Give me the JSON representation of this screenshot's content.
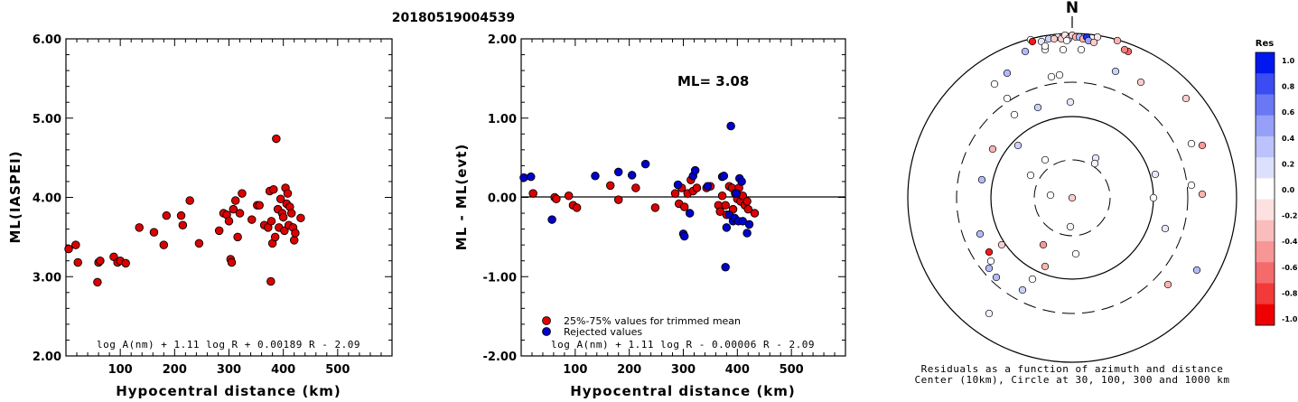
{
  "event_id": "20180519004539",
  "chart_data": [
    {
      "type": "scatter",
      "ylabel": "ML(IASPEI)",
      "xlabel": "Hypocentral distance (km)",
      "xlim": [
        0,
        600
      ],
      "ylim": [
        2.0,
        6.0
      ],
      "xticks": [
        "100",
        "200",
        "300",
        "400",
        "500"
      ],
      "yticks": [
        "2.00",
        "3.00",
        "4.00",
        "5.00",
        "6.00"
      ],
      "formula": "log A(nm) + 1.11 log R + 0.00189 R - 2.09",
      "color": "#dd0000",
      "points": [
        [
          5,
          3.35
        ],
        [
          18,
          3.4
        ],
        [
          22,
          3.18
        ],
        [
          58,
          2.93
        ],
        [
          60,
          3.18
        ],
        [
          63,
          3.2
        ],
        [
          88,
          3.25
        ],
        [
          95,
          3.18
        ],
        [
          100,
          3.2
        ],
        [
          110,
          3.17
        ],
        [
          135,
          3.62
        ],
        [
          162,
          3.56
        ],
        [
          180,
          3.4
        ],
        [
          185,
          3.77
        ],
        [
          212,
          3.77
        ],
        [
          215,
          3.65
        ],
        [
          228,
          3.96
        ],
        [
          245,
          3.42
        ],
        [
          282,
          3.58
        ],
        [
          290,
          3.8
        ],
        [
          296,
          3.78
        ],
        [
          300,
          3.7
        ],
        [
          303,
          3.22
        ],
        [
          305,
          3.18
        ],
        [
          308,
          3.85
        ],
        [
          312,
          3.96
        ],
        [
          316,
          3.5
        ],
        [
          320,
          3.8
        ],
        [
          324,
          4.05
        ],
        [
          342,
          3.72
        ],
        [
          352,
          3.9
        ],
        [
          356,
          3.9
        ],
        [
          365,
          3.65
        ],
        [
          372,
          3.62
        ],
        [
          375,
          4.08
        ],
        [
          377,
          2.94
        ],
        [
          378,
          3.7
        ],
        [
          380,
          3.42
        ],
        [
          382,
          4.1
        ],
        [
          385,
          3.5
        ],
        [
          387,
          4.74
        ],
        [
          390,
          3.85
        ],
        [
          392,
          3.62
        ],
        [
          395,
          3.98
        ],
        [
          398,
          3.8
        ],
        [
          400,
          3.75
        ],
        [
          402,
          3.58
        ],
        [
          404,
          4.12
        ],
        [
          406,
          3.92
        ],
        [
          408,
          4.05
        ],
        [
          410,
          3.65
        ],
        [
          412,
          3.88
        ],
        [
          415,
          3.8
        ],
        [
          418,
          3.62
        ],
        [
          420,
          3.46
        ],
        [
          422,
          3.55
        ],
        [
          432,
          3.74
        ]
      ]
    },
    {
      "type": "scatter",
      "ylabel": "ML - ML(evt)",
      "xlabel": "Hypocentral distance (km)",
      "xlim": [
        0,
        600
      ],
      "ylim": [
        -2.0,
        2.0
      ],
      "xticks": [
        "100",
        "200",
        "300",
        "400",
        "500"
      ],
      "yticks": [
        "-2.00",
        "-1.00",
        "0.00",
        "1.00",
        "2.00"
      ],
      "annotation": "ML= 3.08",
      "formula": "log A(nm) + 1.11 log R - 0.00006 R - 2.09",
      "legend": [
        {
          "label": "25%-75% values for trimmed mean",
          "color": "#dd0000"
        },
        {
          "label": "Rejected values",
          "color": "#0000cc"
        }
      ],
      "series": [
        {
          "name": "25%-75% values for trimmed mean",
          "color": "#dd0000",
          "points": [
            [
              22,
              0.05
            ],
            [
              62,
              0.0
            ],
            [
              65,
              -0.02
            ],
            [
              88,
              0.02
            ],
            [
              96,
              -0.1
            ],
            [
              103,
              -0.13
            ],
            [
              165,
              0.15
            ],
            [
              180,
              -0.03
            ],
            [
              212,
              0.12
            ],
            [
              248,
              -0.13
            ],
            [
              285,
              0.05
            ],
            [
              292,
              -0.08
            ],
            [
              297,
              0.12
            ],
            [
              302,
              -0.12
            ],
            [
              308,
              0.05
            ],
            [
              314,
              0.22
            ],
            [
              318,
              0.08
            ],
            [
              325,
              0.12
            ],
            [
              343,
              0.12
            ],
            [
              350,
              0.14
            ],
            [
              365,
              -0.1
            ],
            [
              368,
              -0.18
            ],
            [
              372,
              0.02
            ],
            [
              378,
              -0.1
            ],
            [
              380,
              -0.22
            ],
            [
              385,
              0.14
            ],
            [
              390,
              0.12
            ],
            [
              392,
              -0.15
            ],
            [
              396,
              0.05
            ],
            [
              400,
              -0.02
            ],
            [
              403,
              0.12
            ],
            [
              406,
              -0.05
            ],
            [
              410,
              0.02
            ],
            [
              414,
              -0.1
            ],
            [
              418,
              -0.05
            ],
            [
              420,
              -0.15
            ],
            [
              432,
              -0.2
            ]
          ]
        },
        {
          "name": "Rejected values",
          "color": "#0000cc",
          "points": [
            [
              5,
              0.25
            ],
            [
              18,
              0.26
            ],
            [
              57,
              -0.28
            ],
            [
              137,
              0.27
            ],
            [
              180,
              0.32
            ],
            [
              205,
              0.28
            ],
            [
              230,
              0.42
            ],
            [
              290,
              0.16
            ],
            [
              300,
              -0.46
            ],
            [
              302,
              -0.49
            ],
            [
              312,
              -0.2
            ],
            [
              318,
              0.27
            ],
            [
              322,
              0.34
            ],
            [
              345,
              0.14
            ],
            [
              372,
              0.26
            ],
            [
              375,
              0.27
            ],
            [
              378,
              -0.88
            ],
            [
              380,
              -0.38
            ],
            [
              385,
              -0.22
            ],
            [
              388,
              0.9
            ],
            [
              392,
              -0.3
            ],
            [
              395,
              -0.26
            ],
            [
              398,
              0.05
            ],
            [
              402,
              -0.3
            ],
            [
              404,
              0.24
            ],
            [
              408,
              0.2
            ],
            [
              410,
              -0.3
            ],
            [
              418,
              -0.45
            ],
            [
              422,
              -0.34
            ]
          ]
        }
      ]
    }
  ],
  "polar": {
    "north_label": "N",
    "caption_line1": "Residuals as a function of azimuth and distance",
    "caption_line2": "Center (10km), Circle at 30, 100, 300 and 1000 km",
    "legend_title": "Res",
    "colorbar_ticks": [
      "1.0",
      "0.8",
      "0.6",
      "0.4",
      "0.2",
      "0.0",
      "-0.2",
      "-0.4",
      "-0.6",
      "-0.8",
      "-1.0"
    ],
    "colorbar_colors": [
      "#0018ee",
      "#3a4cf2",
      "#6a78f5",
      "#96a0f8",
      "#bcc2fb",
      "#dde0fd",
      "#ffffff",
      "#fde0e0",
      "#fbbcbc",
      "#f89696",
      "#f56a6a",
      "#f23a3a",
      "#ee0000"
    ],
    "stations": [
      [
        0,
        0,
        -0.2
      ],
      [
        -2,
        32,
        0.05
      ],
      [
        -30,
        -42,
        0.0
      ],
      [
        26,
        -44,
        0.1
      ],
      [
        25,
        -38,
        0.05
      ],
      [
        -46,
        -25,
        0.0
      ],
      [
        -24,
        -3,
        0.0
      ],
      [
        90,
        0,
        0.0
      ],
      [
        -32,
        52,
        -0.4
      ],
      [
        4,
        62,
        0.0
      ],
      [
        -44,
        90,
        0.0
      ],
      [
        -78,
        52,
        -0.2
      ],
      [
        -30,
        76,
        -0.3
      ],
      [
        -55,
        102,
        0.2
      ],
      [
        -84,
        88,
        0.3
      ],
      [
        -90,
        70,
        0.0
      ],
      [
        -92,
        78,
        0.3
      ],
      [
        -92,
        128,
        0.05
      ],
      [
        -100,
        -20,
        0.3
      ],
      [
        -92,
        60,
        -0.9
      ],
      [
        -102,
        40,
        0.3
      ],
      [
        132,
        -60,
        0.0
      ],
      [
        144,
        -4,
        -0.3
      ],
      [
        106,
        96,
        -0.3
      ],
      [
        138,
        80,
        0.3
      ],
      [
        144,
        -58,
        -0.4
      ],
      [
        92,
        -26,
        0.1
      ],
      [
        103,
        34,
        0.1
      ],
      [
        132,
        -14,
        0.0
      ],
      [
        -72,
        -138,
        0.3
      ],
      [
        -52,
        -162,
        0.3
      ],
      [
        -72,
        -110,
        0.0
      ],
      [
        -23,
        -134,
        0.0
      ],
      [
        -30,
        -164,
        0.0
      ],
      [
        -10,
        -164,
        0.0
      ],
      [
        10,
        -164,
        0.0
      ],
      [
        62,
        -162,
        -0.6
      ],
      [
        58,
        -164,
        -0.5
      ],
      [
        -88,
        -54,
        -0.3
      ],
      [
        -86,
        -126,
        0.0
      ],
      [
        126,
        -110,
        -0.2
      ],
      [
        48,
        -140,
        0.2
      ],
      [
        76,
        -128,
        -0.2
      ],
      [
        -46,
        -175,
        0.0
      ],
      [
        -34,
        -173,
        0.1
      ],
      [
        -26,
        -176,
        0.2
      ],
      [
        -16,
        -178,
        0.1
      ],
      [
        -12,
        -176,
        -0.2
      ],
      [
        -8,
        -180,
        -0.1
      ],
      [
        -4,
        -176,
        0.2
      ],
      [
        0,
        -180,
        -0.2
      ],
      [
        4,
        -178,
        -0.3
      ],
      [
        8,
        -178,
        0.3
      ],
      [
        12,
        -176,
        -0.3
      ],
      [
        16,
        -178,
        0.9
      ],
      [
        -6,
        -174,
        0.0
      ],
      [
        -20,
        -176,
        -0.2
      ],
      [
        50,
        -174,
        -0.3
      ],
      [
        -44,
        -173,
        -0.9
      ],
      [
        18,
        -174,
        0.4
      ],
      [
        28,
        -178,
        -0.1
      ],
      [
        24,
        -172,
        -0.2
      ],
      [
        -60,
        -58,
        0.2
      ],
      [
        -2,
        -106,
        0.1
      ],
      [
        -38,
        -100,
        0.2
      ],
      [
        -64,
        -92,
        0.0
      ],
      [
        -14,
        -136,
        0.0
      ],
      [
        -30,
        -168,
        0.0
      ]
    ]
  }
}
